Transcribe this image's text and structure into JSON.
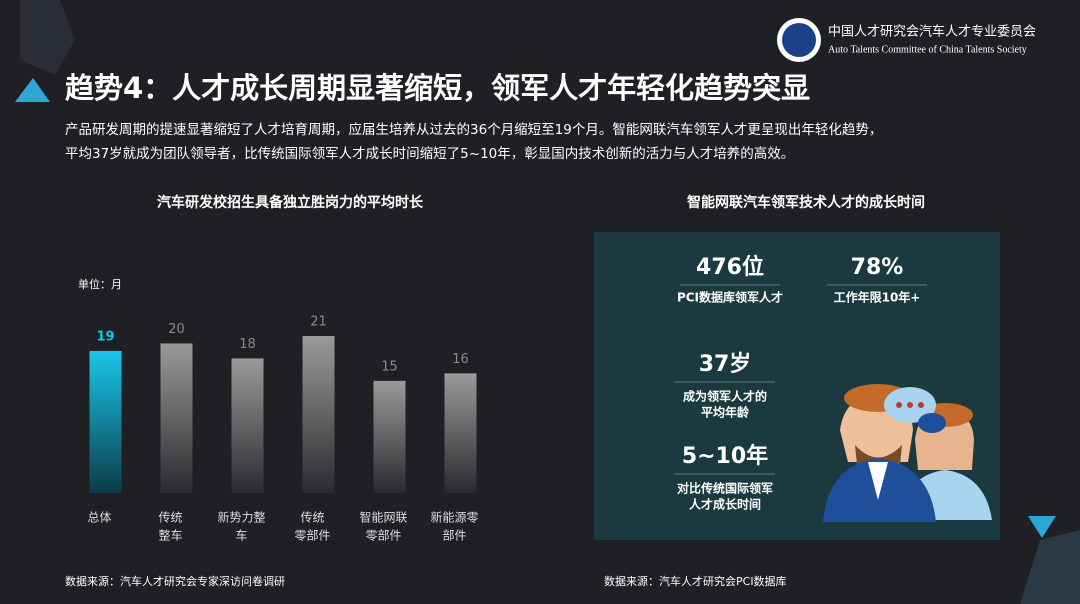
{
  "header": {
    "org_name": "中国人才研究会汽车人才专业委员会",
    "org_name_en": "Auto Talents Committee of China Talents Society",
    "title": "趋势4：人才成长周期显著缩短，领军人才年轻化趋势突显",
    "subtitle": [
      "产品研发周期的提速显著缩短了人才培育周期，应届生培养从过去的36个月缩短至19个月。智能网联汽车领军人才更呈现出年轻化趋势，",
      "平均37岁就成为团队领导者，比传统国际领军人才成长时间缩短了5~10年，彰显国内技术创新的活力与人才培养的高效。"
    ]
  },
  "chart_data": {
    "type": "bar",
    "title": "汽车研发校招生具备独立胜岗力的平均时长",
    "unit": "单位：月",
    "categories": [
      [
        "总体"
      ],
      [
        "传统",
        "整车"
      ],
      [
        "新势力整",
        "车"
      ],
      [
        "传统",
        "零部件"
      ],
      [
        "智能网联",
        "零部件"
      ],
      [
        "新能源零",
        "部件"
      ]
    ],
    "values": [
      19,
      20,
      18,
      21,
      15,
      16
    ],
    "colors": [
      "#19c6ea",
      "#8a8a8a",
      "#8a8a8a",
      "#8a8a8a",
      "#8a8a8a",
      "#8a8a8a"
    ],
    "ylim": [
      0,
      21
    ],
    "source": "数据来源：汽车人才研究会专家深访问卷调研"
  },
  "panel": {
    "title": "智能网联汽车领军技术人才的成长时间",
    "stats": [
      {
        "value": "476位",
        "label": [
          "PCI数据库领军人才"
        ]
      },
      {
        "value": "78%",
        "label": [
          "工作年限10年+"
        ]
      },
      {
        "value": "37岁",
        "label": [
          "成为领军人才的",
          "平均年龄"
        ]
      },
      {
        "value": "5~10年",
        "label": [
          "对比传统国际领军",
          "人才成长时间"
        ]
      }
    ],
    "source": "数据来源：汽车人才研究会PCI数据库"
  }
}
